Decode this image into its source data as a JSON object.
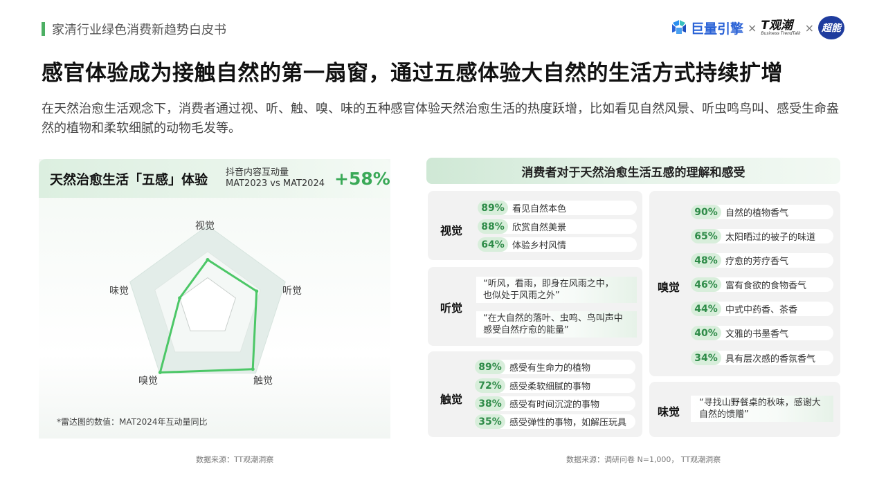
{
  "header": {
    "section_label": "家清行业绿色消费新趋势白皮书",
    "brand1": "巨量引擎",
    "sep": "×",
    "brand2": "T观潮",
    "brand2_sub": "Business TrendTalk",
    "brand3": "超能"
  },
  "title": "感官体验成为接触自然的第一扇窗，通过五感体验大自然的生活方式持续扩增",
  "subtitle": "在天然治愈生活观念下，消费者通过视、听、触、嗅、味的五种感官体验天然治愈生活的热度跃增，比如看见自然风景、听虫鸣鸟叫、感受生命盎然的植物和柔软细腻的动物毛发等。",
  "left": {
    "title": "天然治愈生活「五感」体验",
    "meta_line1": "抖音内容互动量",
    "meta_line2": "MAT2023 vs MAT2024",
    "growth": "+58%",
    "note": "*雷达图的数值：MAT2024年互动量同比",
    "source": "数据来源：TT观潮洞察"
  },
  "chart_data": {
    "type": "radar",
    "axes": [
      "视觉",
      "听觉",
      "触觉",
      "嗅觉",
      "味觉"
    ],
    "values": [
      0.58,
      0.63,
      0.94,
      0.99,
      0.36
    ],
    "series_color": "#4cc767",
    "rings": 3
  },
  "right": {
    "title": "消费者对于天然治愈生活五感的理解和感受",
    "source": "数据来源：调研问卷 N=1,000， TT观潮洞察",
    "visual": {
      "label": "视觉",
      "items": [
        {
          "pct": "89%",
          "text": "看见自然本色"
        },
        {
          "pct": "88%",
          "text": "欣赏自然美景"
        },
        {
          "pct": "64%",
          "text": "体验乡村风情"
        }
      ]
    },
    "hearing": {
      "label": "听觉",
      "quotes": [
        {
          "l1": "“听风，看雨，即身在风雨之中，",
          "l2": "也似处于风雨之外”"
        },
        {
          "l1": "“在大自然的落叶、虫鸣、鸟叫声中",
          "l2": "感受自然疗愈的能量”"
        }
      ]
    },
    "touch": {
      "label": "触觉",
      "items": [
        {
          "pct": "89%",
          "text": "感受有生命力的植物"
        },
        {
          "pct": "72%",
          "text": "感受柔软细腻的事物"
        },
        {
          "pct": "38%",
          "text": "感受有时间沉淀的事物"
        },
        {
          "pct": "35%",
          "text": "感受弹性的事物，如解压玩具"
        }
      ]
    },
    "smell": {
      "label": "嗅觉",
      "items": [
        {
          "pct": "90%",
          "text": "自然的植物香气"
        },
        {
          "pct": "65%",
          "text": "太阳晒过的被子的味道"
        },
        {
          "pct": "48%",
          "text": "疗愈的芳疗香气"
        },
        {
          "pct": "46%",
          "text": "富有食欲的食物香气"
        },
        {
          "pct": "44%",
          "text": "中式中药香、茶香"
        },
        {
          "pct": "40%",
          "text": "文雅的书墨香气"
        },
        {
          "pct": "34%",
          "text": "具有层次感的香氛香气"
        }
      ]
    },
    "taste": {
      "label": "味觉",
      "quote_l1": "“寻找山野餐桌的秋味，感谢大",
      "quote_l2": "自然的馈赠”"
    }
  }
}
